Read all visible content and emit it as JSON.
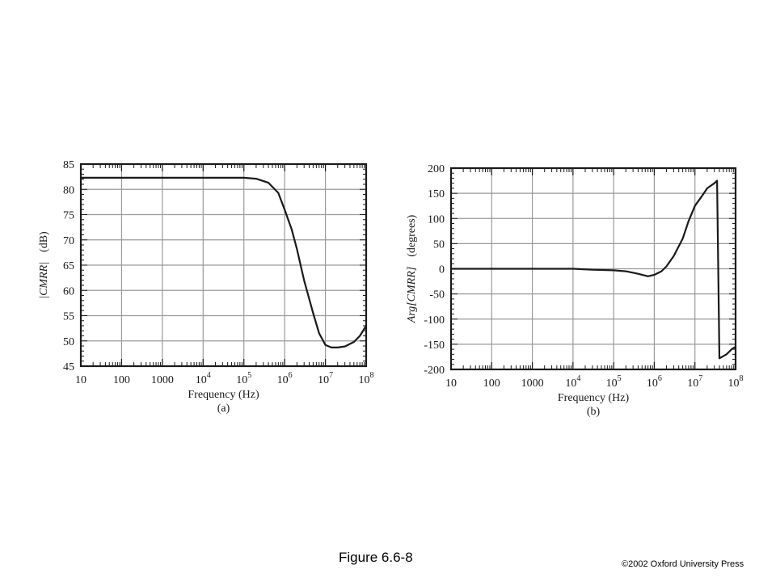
{
  "figure_caption": "Figure 6.6-8",
  "copyright": "©2002 Oxford University Press",
  "colors": {
    "line": "#1a1a1a",
    "grid": "#9a9a9a",
    "frame": "#1a1a1a"
  },
  "chart_data": [
    {
      "type": "line",
      "panel": "(a)",
      "xlabel": "Frequency (Hz)",
      "ylabel_main": "|CMRR|",
      "ylabel_unit": "(dB)",
      "xscale": "log",
      "xlim": [
        10,
        100000000
      ],
      "ylim": [
        45,
        85
      ],
      "x_ticks": [
        10,
        100,
        1000,
        10000,
        100000,
        1000000,
        10000000,
        100000000
      ],
      "x_tick_labels": [
        {
          "base": "10",
          "exp": ""
        },
        {
          "base": "100",
          "exp": ""
        },
        {
          "base": "1000",
          "exp": ""
        },
        {
          "base": "10",
          "exp": "4"
        },
        {
          "base": "10",
          "exp": "5"
        },
        {
          "base": "10",
          "exp": "6"
        },
        {
          "base": "10",
          "exp": "7"
        },
        {
          "base": "10",
          "exp": "8"
        }
      ],
      "y_ticks": [
        "45",
        "50",
        "55",
        "60",
        "65",
        "70",
        "75",
        "80",
        "85"
      ],
      "grid": true,
      "series": [
        {
          "x": [
            10,
            100,
            1000,
            10000,
            100000,
            200000,
            400000,
            700000,
            1000000,
            1500000,
            2000000,
            3000000,
            5000000,
            7000000,
            10000000,
            14000000,
            20000000,
            30000000,
            50000000,
            70000000,
            100000000
          ],
          "y": [
            82.3,
            82.3,
            82.3,
            82.3,
            82.3,
            82.1,
            81.3,
            79.3,
            76.0,
            72.0,
            68.2,
            62.0,
            55.5,
            51.5,
            49.2,
            48.7,
            48.7,
            48.9,
            49.8,
            51.0,
            53.0
          ]
        }
      ]
    },
    {
      "type": "line",
      "panel": "(b)",
      "xlabel": "Frequency (Hz)",
      "ylabel_main": "Arg[CMRR]",
      "ylabel_unit": "(degrees)",
      "xscale": "log",
      "xlim": [
        10,
        100000000
      ],
      "ylim": [
        -200,
        200
      ],
      "x_ticks": [
        10,
        100,
        1000,
        10000,
        100000,
        1000000,
        10000000,
        100000000
      ],
      "x_tick_labels": [
        {
          "base": "10",
          "exp": ""
        },
        {
          "base": "100",
          "exp": ""
        },
        {
          "base": "1000",
          "exp": ""
        },
        {
          "base": "10",
          "exp": "4"
        },
        {
          "base": "10",
          "exp": "5"
        },
        {
          "base": "10",
          "exp": "6"
        },
        {
          "base": "10",
          "exp": "7"
        },
        {
          "base": "10",
          "exp": "8"
        }
      ],
      "y_ticks": [
        "200",
        "150",
        "100",
        "50",
        "0",
        "-50",
        "-100",
        "-150",
        "-200"
      ],
      "grid": true,
      "series": [
        {
          "x": [
            10,
            100,
            1000,
            10000,
            30000,
            100000,
            200000,
            400000,
            700000,
            1000000,
            1500000,
            2000000,
            3000000,
            5000000,
            7000000,
            10000000,
            15000000,
            20000000,
            30000000,
            35000000,
            40000000,
            60000000,
            80000000,
            100000000
          ],
          "y": [
            0,
            0,
            0,
            0,
            -2,
            -3,
            -5,
            -10,
            -15,
            -12,
            -5,
            5,
            25,
            60,
            95,
            125,
            145,
            160,
            170,
            175,
            -178,
            -170,
            -160,
            -155
          ]
        }
      ]
    }
  ]
}
